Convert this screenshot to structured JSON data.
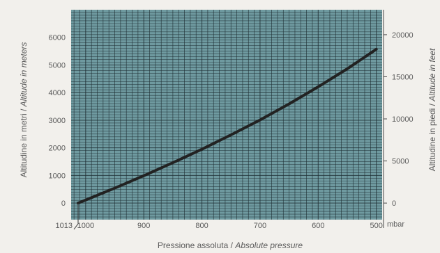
{
  "chart_data": {
    "type": "line",
    "xlabel": "Pressione assoluta / ",
    "xlabel_italic": "Absolute pressure",
    "ylabel": "Altitudine in metri / ",
    "ylabel_italic": "Altitude in meters",
    "y2label": "Altitudine in piedi / ",
    "y2label_italic": "Altitude in feet",
    "x_unit": "mbar",
    "x_reversed": true,
    "xlim": [
      1025,
      490
    ],
    "ylim": [
      -600,
      7000
    ],
    "y2lim": [
      -1969,
      22966
    ],
    "grid": true,
    "grid_color": "#6f9aa0",
    "grid_line_color": "#1e2e33",
    "curve_color": "#222222",
    "x_ticks": [
      1000,
      900,
      800,
      700,
      600,
      500
    ],
    "x_extra_tick": "1013",
    "y_ticks": [
      0,
      1000,
      2000,
      3000,
      4000,
      5000,
      6000
    ],
    "y2_ticks": [
      0,
      5000,
      10000,
      15000,
      20000
    ],
    "series": [
      {
        "x": [
          1013,
          1000,
          950,
          900,
          850,
          800,
          750,
          700,
          650,
          600,
          550,
          500
        ],
        "y": [
          0,
          110,
          540,
          990,
          1460,
          1950,
          2470,
          3010,
          3590,
          4210,
          4860,
          5570
        ]
      }
    ]
  }
}
